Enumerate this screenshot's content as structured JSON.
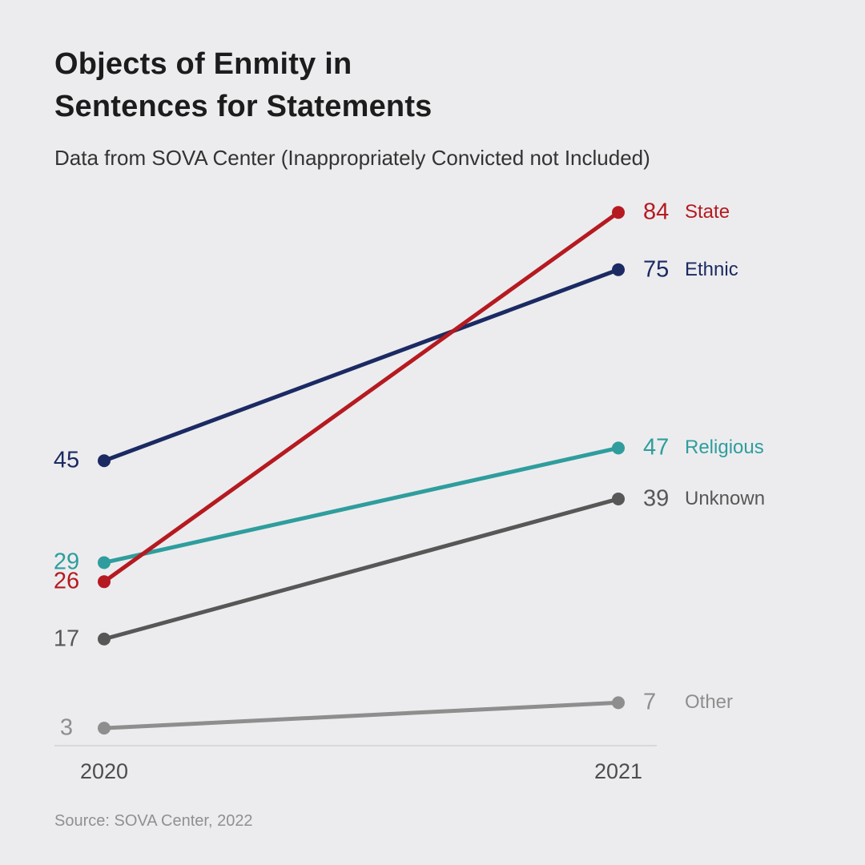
{
  "title": {
    "line1": "Objects of Enmity in",
    "line2": "Sentences for Statements"
  },
  "subtitle": "Data from SOVA Center (Inappropriately Convicted not Included)",
  "source": "Source: SOVA Center, 2022",
  "chart_data": {
    "type": "line",
    "variant": "slope-chart",
    "title": "Objects of Enmity in Sentences for Statements",
    "subtitle": "Data from SOVA Center (Inappropriately Convicted not Included)",
    "categories": [
      "2020",
      "2021"
    ],
    "series": [
      {
        "name": "State",
        "color": "#b51a20",
        "values": [
          26,
          84
        ]
      },
      {
        "name": "Ethnic",
        "color": "#1b2a63",
        "values": [
          45,
          75
        ]
      },
      {
        "name": "Religious",
        "color": "#2f9d9d",
        "values": [
          29,
          47
        ]
      },
      {
        "name": "Unknown",
        "color": "#575757",
        "values": [
          17,
          39
        ]
      },
      {
        "name": "Other",
        "color": "#8e8e8e",
        "values": [
          3,
          7
        ]
      }
    ],
    "ylim": [
      0,
      90
    ],
    "grid": false,
    "legend_position": "right-of-line-ends",
    "value_labels": "both-ends",
    "background_color": "#ececee"
  }
}
